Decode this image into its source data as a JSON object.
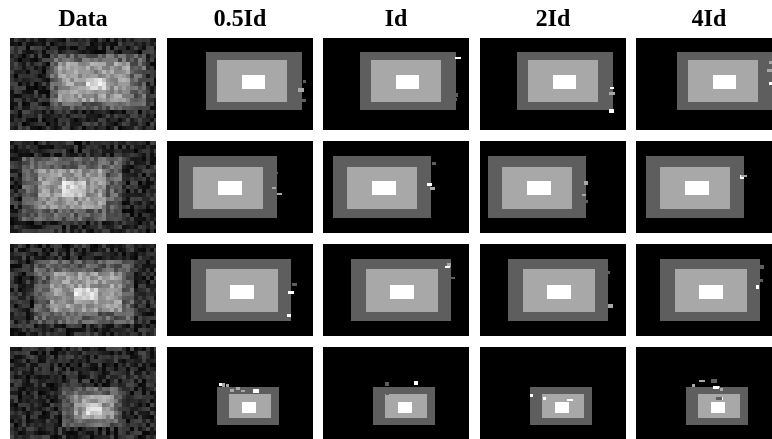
{
  "columns": [
    "Data",
    "0.5Id",
    "Id",
    "2Id",
    "4Id"
  ],
  "colors": {
    "background": "#ffffff",
    "panel": "#000000",
    "outer_region": "#5e5e5e",
    "middle_region": "#a8a8a8",
    "inner_region": "#ffffff"
  }
}
